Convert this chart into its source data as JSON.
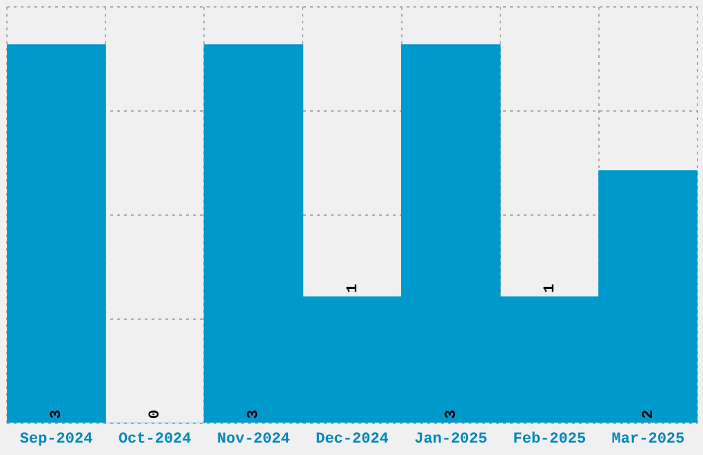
{
  "chart_data": {
    "type": "bar",
    "categories": [
      "Sep-2024",
      "Oct-2024",
      "Nov-2024",
      "Dec-2024",
      "Jan-2025",
      "Feb-2025",
      "Mar-2025"
    ],
    "values": [
      3,
      0,
      3,
      1,
      3,
      1,
      2
    ],
    "color": "#0099cc",
    "ylim": [
      0,
      3.3
    ],
    "yticks": [
      {
        "value": 0,
        "label": null
      },
      {
        "value": 0.825,
        "label": null
      },
      {
        "value": 1.65,
        "label": null
      },
      {
        "value": 2.475,
        "label": null
      },
      {
        "value": 3.3,
        "label": null
      }
    ],
    "grid": true,
    "data_labels": true,
    "tick_labels": "x"
  }
}
